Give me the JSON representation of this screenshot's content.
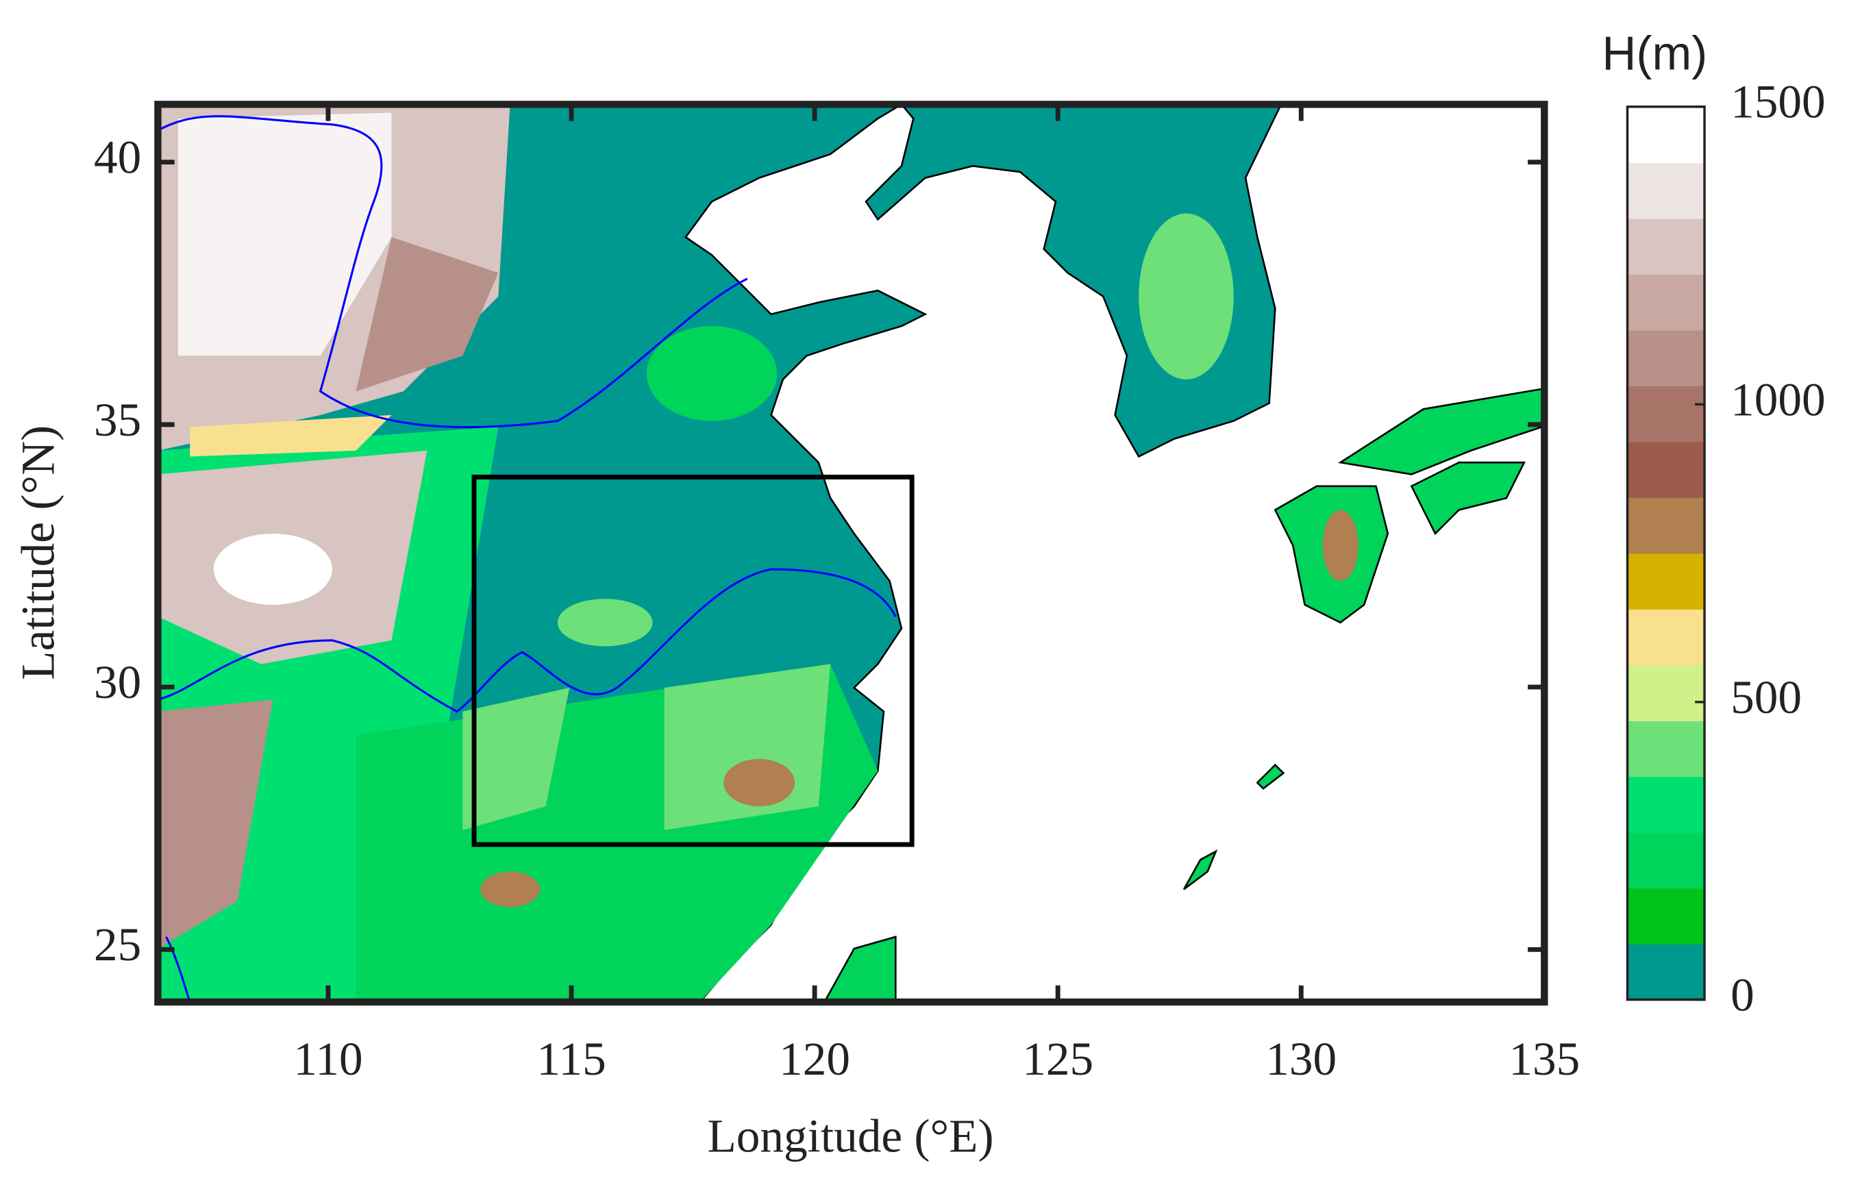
{
  "chart_data": {
    "type": "map",
    "xlabel": "Longitude (°E)",
    "ylabel": "Latitude (°N)",
    "xlim": [
      106.5,
      135
    ],
    "ylim": [
      24,
      41.1
    ],
    "xticks": [
      110,
      115,
      120,
      125,
      130,
      135
    ],
    "yticks": [
      25,
      30,
      35,
      40
    ],
    "box": {
      "lon": [
        113,
        122
      ],
      "lat": [
        27,
        34
      ],
      "color": "#000000"
    },
    "colorbar": {
      "label": "H(m)",
      "clim": [
        0,
        1500
      ],
      "ticks": [
        0,
        500,
        1000,
        1500
      ],
      "colors": [
        "#00998f",
        "#00c41a",
        "#00d45a",
        "#00e070",
        "#6ee07a",
        "#d0f08a",
        "#f8e090",
        "#d6b200",
        "#b08050",
        "#9e5a4a",
        "#a87468",
        "#b8908a",
        "#c8a8a0",
        "#d8c4c0",
        "#ece4e2",
        "#ffffff"
      ]
    }
  }
}
